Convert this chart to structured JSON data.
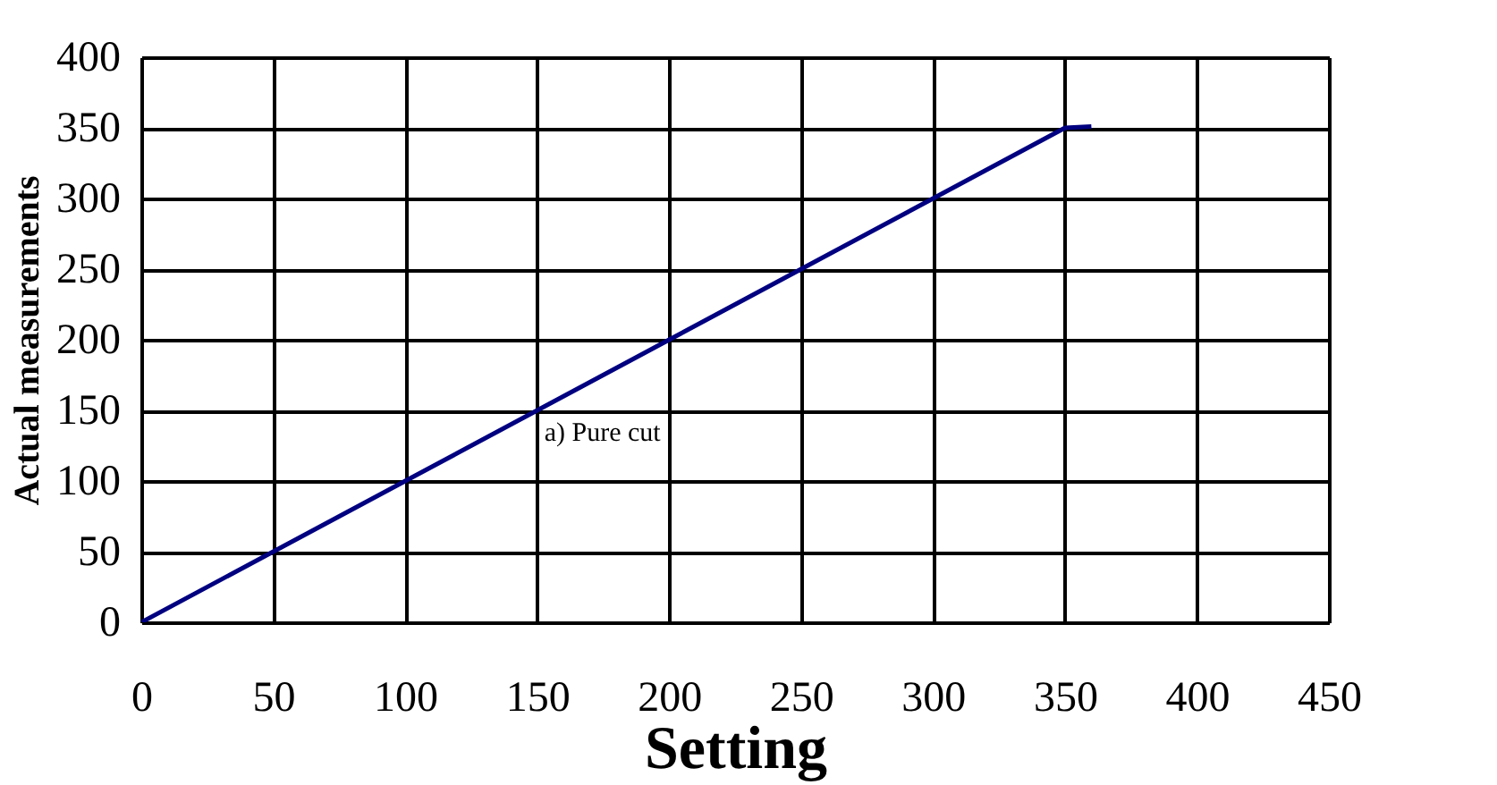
{
  "chart_data": {
    "type": "line",
    "xlabel": "Setting",
    "ylabel": "Actual measurements",
    "x": [
      0,
      50,
      100,
      150,
      200,
      250,
      300,
      350,
      360
    ],
    "series": [
      {
        "color": "#000080",
        "values": [
          0,
          50,
          100,
          150,
          200,
          250,
          300,
          350,
          351
        ]
      }
    ],
    "xlim": [
      0,
      450
    ],
    "xticks": [
      0,
      50,
      100,
      150,
      200,
      250,
      300,
      350,
      400,
      450
    ],
    "ylim": [
      0,
      400
    ],
    "yticks": [
      0,
      50,
      100,
      150,
      200,
      250,
      300,
      350,
      400
    ],
    "grid": true,
    "marker": "none",
    "line_style": "solid",
    "annotations": [
      {
        "text": "a) Pure cut",
        "x": 150,
        "y": 150
      }
    ]
  }
}
